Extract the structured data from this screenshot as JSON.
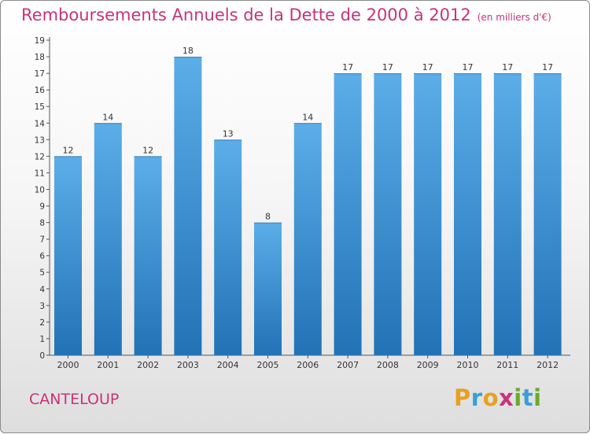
{
  "header": {
    "title": "Remboursements Annuels de la Dette de 2000 à 2012",
    "subtitle": "(en milliers d'€)"
  },
  "footer": {
    "city": "CANTELOUP",
    "logo_letters": [
      "P",
      "r",
      "o",
      "x",
      "i",
      "t",
      "i"
    ],
    "logo_colors": [
      "#e8a020",
      "#3a9ed8",
      "#e8a020",
      "#c8337a",
      "#6aaa2a",
      "#3a9ed8",
      "#6aaa2a"
    ]
  },
  "colors": {
    "bar_top": "#5baee8",
    "bar_bottom": "#2272b6",
    "title": "#c8337a"
  },
  "chart_data": {
    "type": "bar",
    "title": "Remboursements Annuels de la Dette de 2000 à 2012",
    "xlabel": "",
    "ylabel": "",
    "categories": [
      "2000",
      "2001",
      "2002",
      "2003",
      "2004",
      "2005",
      "2006",
      "2007",
      "2008",
      "2009",
      "2010",
      "2011",
      "2012"
    ],
    "values": [
      12,
      14,
      12,
      18,
      13,
      8,
      14,
      17,
      17,
      17,
      17,
      17,
      17
    ],
    "ylim": [
      0,
      19
    ],
    "yticks": [
      0,
      1,
      2,
      3,
      4,
      5,
      6,
      7,
      8,
      9,
      10,
      11,
      12,
      13,
      14,
      15,
      16,
      17,
      18,
      19
    ],
    "grid": false,
    "data_labels": true
  }
}
